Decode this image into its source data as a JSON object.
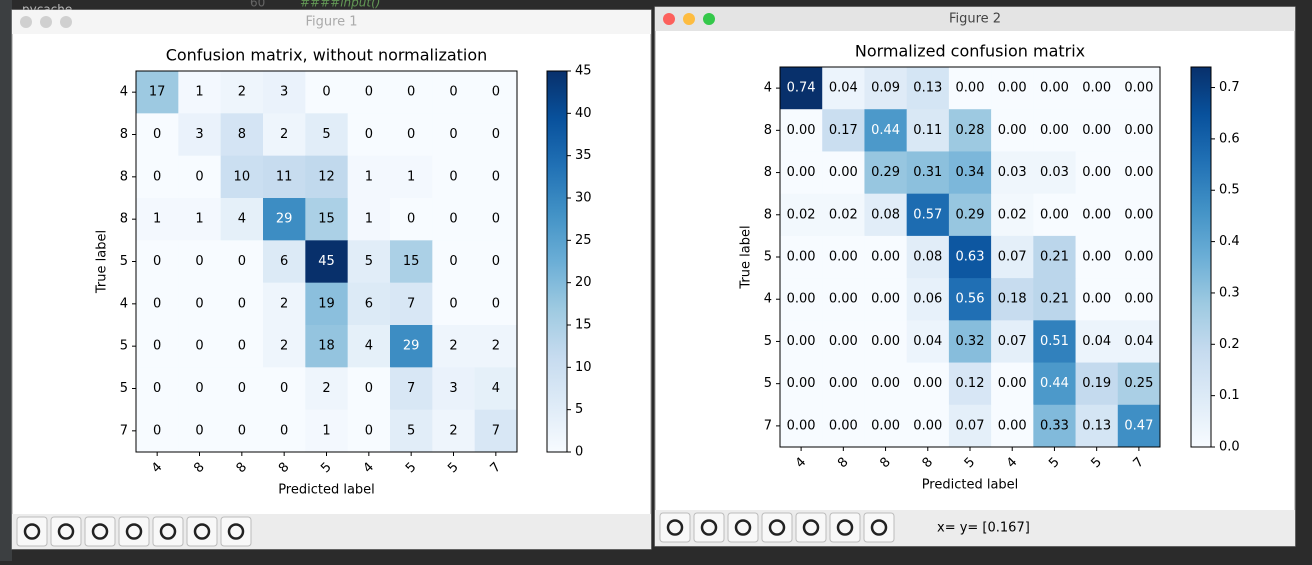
{
  "editor": {
    "folder": "pycache",
    "line_number": "60",
    "code": "####input()"
  },
  "windows": [
    {
      "title": "Figure 1",
      "status": null
    },
    {
      "title": "Figure 2",
      "status": "x= y= [0.167]"
    }
  ],
  "chart_data": [
    {
      "type": "heatmap",
      "title": "Confusion matrix, without normalization",
      "x_label": "Predicted label",
      "y_label": "True label",
      "colormap": "Blues",
      "x_categories": [
        "4",
        "8",
        "8",
        "8",
        "5",
        "4",
        "5",
        "5",
        "7"
      ],
      "y_categories": [
        "4",
        "8",
        "8",
        "8",
        "5",
        "4",
        "5",
        "5",
        "7"
      ],
      "values": [
        [
          17,
          1,
          2,
          3,
          0,
          0,
          0,
          0,
          0
        ],
        [
          0,
          3,
          8,
          2,
          5,
          0,
          0,
          0,
          0
        ],
        [
          0,
          0,
          10,
          11,
          12,
          1,
          1,
          0,
          0
        ],
        [
          1,
          1,
          4,
          29,
          15,
          1,
          0,
          0,
          0
        ],
        [
          0,
          0,
          0,
          6,
          45,
          5,
          15,
          0,
          0
        ],
        [
          0,
          0,
          0,
          2,
          19,
          6,
          7,
          0,
          0
        ],
        [
          0,
          0,
          0,
          2,
          18,
          4,
          29,
          2,
          2
        ],
        [
          0,
          0,
          0,
          0,
          2,
          0,
          7,
          3,
          4
        ],
        [
          0,
          0,
          0,
          0,
          1,
          0,
          5,
          2,
          7
        ]
      ],
      "clim": [
        0,
        45
      ],
      "cticks": [
        0,
        5,
        10,
        15,
        20,
        25,
        30,
        35,
        40,
        45
      ]
    },
    {
      "type": "heatmap",
      "title": "Normalized confusion matrix",
      "x_label": "Predicted label",
      "y_label": "True label",
      "colormap": "Blues",
      "x_categories": [
        "4",
        "8",
        "8",
        "8",
        "5",
        "4",
        "5",
        "5",
        "7"
      ],
      "y_categories": [
        "4",
        "8",
        "8",
        "8",
        "5",
        "4",
        "5",
        "5",
        "7"
      ],
      "values": [
        [
          0.74,
          0.04,
          0.09,
          0.13,
          0,
          0,
          0,
          0,
          0
        ],
        [
          0,
          0.17,
          0.44,
          0.11,
          0.28,
          0,
          0,
          0,
          0
        ],
        [
          0,
          0,
          0.29,
          0.31,
          0.34,
          0.03,
          0.03,
          0,
          0
        ],
        [
          0.02,
          0.02,
          0.08,
          0.57,
          0.29,
          0.02,
          0,
          0,
          0
        ],
        [
          0,
          0,
          0,
          0.08,
          0.63,
          0.07,
          0.21,
          0,
          0
        ],
        [
          0,
          0,
          0,
          0.06,
          0.56,
          0.18,
          0.21,
          0,
          0
        ],
        [
          0,
          0,
          0,
          0.04,
          0.32,
          0.07,
          0.51,
          0.04,
          0.04
        ],
        [
          0,
          0,
          0,
          0,
          0.12,
          0,
          0.44,
          0.19,
          0.25
        ],
        [
          0,
          0,
          0,
          0,
          0.07,
          0,
          0.33,
          0.13,
          0.47
        ]
      ],
      "value_labels": [
        [
          "0.74",
          "0.04",
          "0.09",
          "0.13",
          "0.00",
          "0.00",
          "0.00",
          "0.00",
          "0.00"
        ],
        [
          "0.00",
          "0.17",
          "0.44",
          "0.11",
          "0.28",
          "0.00",
          "0.00",
          "0.00",
          "0.00"
        ],
        [
          "0.00",
          "0.00",
          "0.29",
          "0.31",
          "0.34",
          "0.03",
          "0.03",
          "0.00",
          "0.00"
        ],
        [
          "0.02",
          "0.02",
          "0.08",
          "0.57",
          "0.29",
          "0.02",
          "0.00",
          "0.00",
          "0.00"
        ],
        [
          "0.00",
          "0.00",
          "0.00",
          "0.08",
          "0.63",
          "0.07",
          "0.21",
          "0.00",
          "0.00"
        ],
        [
          "0.00",
          "0.00",
          "0.00",
          "0.06",
          "0.56",
          "0.18",
          "0.21",
          "0.00",
          "0.00"
        ],
        [
          "0.00",
          "0.00",
          "0.00",
          "0.04",
          "0.32",
          "0.07",
          "0.51",
          "0.04",
          "0.04"
        ],
        [
          "0.00",
          "0.00",
          "0.00",
          "0.00",
          "0.12",
          "0.00",
          "0.44",
          "0.19",
          "0.25"
        ],
        [
          "0.00",
          "0.00",
          "0.00",
          "0.00",
          "0.07",
          "0.00",
          "0.33",
          "0.13",
          "0.47"
        ]
      ],
      "clim": [
        0,
        0.74
      ],
      "cticks": [
        {
          "value": 0,
          "label": "0.0"
        },
        0.1,
        0.2,
        0.3,
        0.4,
        0.5,
        0.6,
        0.7
      ]
    }
  ]
}
